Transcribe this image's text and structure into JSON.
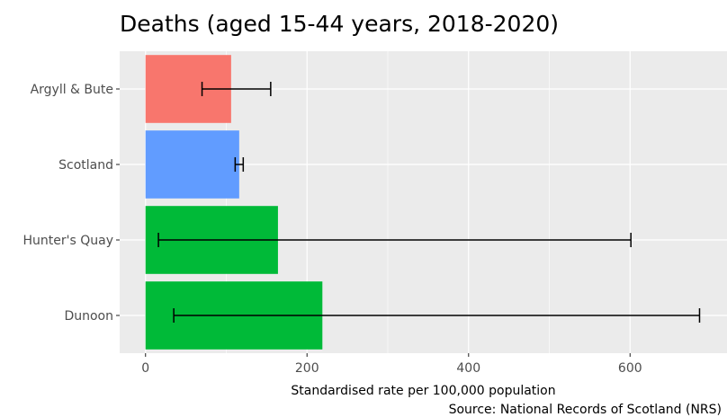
{
  "chart_data": {
    "type": "bar",
    "orientation": "horizontal",
    "title": "Deaths (aged 15-44 years, 2018-2020)",
    "xlabel": "Standardised rate per 100,000 population",
    "ylabel": "",
    "caption": "Source: National Records of Scotland (NRS)",
    "xlim": [
      -32,
      720
    ],
    "x_ticks": [
      0,
      200,
      400,
      600
    ],
    "x_tick_labels": [
      "0",
      "200",
      "400",
      "600"
    ],
    "grid": true,
    "legend": "none",
    "categories": [
      "Argyll & Bute",
      "Scotland",
      "Hunter's Quay",
      "Dunoon"
    ],
    "values": [
      106,
      116,
      164,
      219
    ],
    "error_low": [
      70,
      111,
      16,
      35
    ],
    "error_high": [
      155,
      121,
      601,
      686
    ],
    "colors": [
      "#F8766D",
      "#619CFF",
      "#00BA38",
      "#00BA38"
    ]
  },
  "colors": {
    "panel_background": "#EBEBEB",
    "grid_major": "#FFFFFF",
    "error_bar": "#000000"
  }
}
